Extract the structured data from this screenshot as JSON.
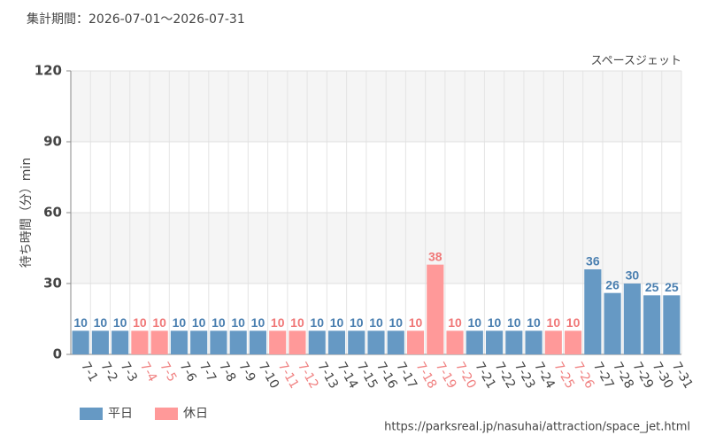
{
  "chart_data": {
    "type": "bar",
    "title": "集計期間：2026-07-01～2026-07-31",
    "subtitle": "スペースジェット",
    "y_label": "待ち時間（分）min",
    "source": "https://parksreal.jp/nasuhai/attraction/space_jet.html",
    "categories": [
      "7-1",
      "7-2",
      "7-3",
      "7-4",
      "7-5",
      "7-6",
      "7-7",
      "7-8",
      "7-9",
      "7-10",
      "7-11",
      "7-12",
      "7-13",
      "7-14",
      "7-15",
      "7-16",
      "7-17",
      "7-18",
      "7-19",
      "7-20",
      "7-21",
      "7-22",
      "7-23",
      "7-24",
      "7-25",
      "7-26",
      "7-27",
      "7-28",
      "7-29",
      "7-30",
      "7-31"
    ],
    "series": [
      {
        "name": "平日",
        "color": "#6699c4",
        "values": [
          10,
          10,
          10,
          null,
          null,
          10,
          10,
          10,
          10,
          10,
          null,
          null,
          10,
          10,
          10,
          10,
          10,
          null,
          null,
          null,
          10,
          10,
          10,
          10,
          null,
          null,
          36,
          26,
          30,
          25,
          25
        ]
      },
      {
        "name": "休日",
        "color": "#ff9999",
        "values": [
          null,
          null,
          null,
          10,
          10,
          null,
          null,
          null,
          null,
          null,
          10,
          10,
          null,
          null,
          null,
          null,
          null,
          10,
          38,
          10,
          null,
          null,
          null,
          null,
          10,
          10,
          null,
          null,
          null,
          null,
          null
        ]
      }
    ],
    "ylim": [
      0,
      120
    ],
    "yticks": [
      0,
      30,
      60,
      90,
      120
    ],
    "grid": true,
    "legend": "bottom-left"
  }
}
